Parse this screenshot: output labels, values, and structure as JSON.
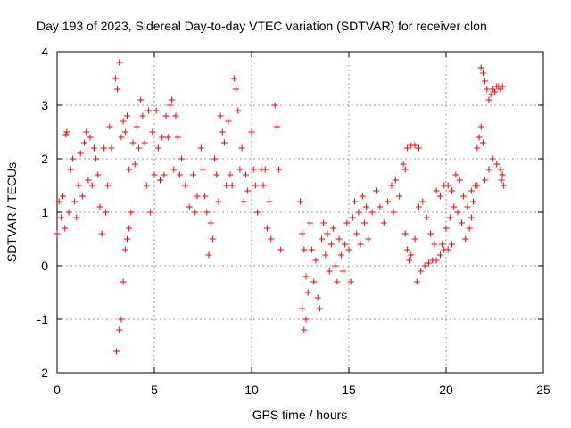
{
  "chart_data": {
    "type": "scatter",
    "title": "Day 193 of 2023, Sidereal Day-to-day VTEC variation (SDTVAR) for receiver clon",
    "xlabel": "GPS time / hours",
    "ylabel": "SDTVAR / TECUs",
    "xlim": [
      0,
      25
    ],
    "ylim": [
      -2,
      4
    ],
    "x_ticks": [
      0,
      5,
      10,
      15,
      20,
      25
    ],
    "x_tick_labels": [
      "0",
      "5",
      "10",
      "15",
      "20",
      "25"
    ],
    "y_ticks": [
      -2,
      -1,
      0,
      1,
      2,
      3,
      4
    ],
    "y_tick_labels": [
      "-2",
      "-1",
      "0",
      "1",
      "2",
      "3",
      "4"
    ],
    "grid": true,
    "marker": "plus",
    "color": "#ff0000",
    "series": [
      {
        "points": [
          [
            0.0,
            0.6
          ],
          [
            0.1,
            1.2
          ],
          [
            0.2,
            0.9
          ],
          [
            0.3,
            1.3
          ],
          [
            0.4,
            0.7
          ],
          [
            0.45,
            2.45
          ],
          [
            0.5,
            2.5
          ],
          [
            0.6,
            1.0
          ],
          [
            0.7,
            1.8
          ],
          [
            0.8,
            2.0
          ],
          [
            0.9,
            1.2
          ],
          [
            1.0,
            0.9
          ],
          [
            1.1,
            1.5
          ],
          [
            1.2,
            2.1
          ],
          [
            1.3,
            1.3
          ],
          [
            1.4,
            2.3
          ],
          [
            1.5,
            2.5
          ],
          [
            1.6,
            1.6
          ],
          [
            1.7,
            2.4
          ],
          [
            1.8,
            1.5
          ],
          [
            1.9,
            2.2
          ],
          [
            2.0,
            2.0
          ],
          [
            2.1,
            1.7
          ],
          [
            2.2,
            1.1
          ],
          [
            2.3,
            0.6
          ],
          [
            2.4,
            2.2
          ],
          [
            2.5,
            1.0
          ],
          [
            2.6,
            1.5
          ],
          [
            2.7,
            2.6
          ],
          [
            2.8,
            2.2
          ],
          [
            3.0,
            3.5
          ],
          [
            3.1,
            3.3
          ],
          [
            3.2,
            3.8
          ],
          [
            3.05,
            -1.6
          ],
          [
            3.2,
            -1.2
          ],
          [
            3.3,
            -1.0
          ],
          [
            3.4,
            -0.3
          ],
          [
            3.5,
            0.3
          ],
          [
            3.6,
            0.5
          ],
          [
            3.7,
            0.7
          ],
          [
            3.3,
            2.4
          ],
          [
            3.4,
            2.7
          ],
          [
            3.5,
            2.5
          ],
          [
            3.6,
            2.8
          ],
          [
            3.7,
            1.8
          ],
          [
            3.8,
            1.0
          ],
          [
            3.9,
            2.3
          ],
          [
            4.0,
            1.9
          ],
          [
            4.1,
            2.6
          ],
          [
            4.2,
            2.2
          ],
          [
            4.3,
            3.1
          ],
          [
            4.4,
            2.8
          ],
          [
            4.5,
            2.3
          ],
          [
            4.6,
            1.5
          ],
          [
            4.7,
            2.9
          ],
          [
            4.8,
            1.0
          ],
          [
            4.9,
            2.5
          ],
          [
            5.0,
            1.7
          ],
          [
            5.1,
            2.9
          ],
          [
            5.2,
            2.2
          ],
          [
            5.3,
            1.6
          ],
          [
            5.4,
            2.4
          ],
          [
            5.5,
            1.7
          ],
          [
            5.6,
            2.8
          ],
          [
            5.7,
            2.4
          ],
          [
            5.8,
            3.0
          ],
          [
            5.9,
            3.1
          ],
          [
            6.0,
            1.8
          ],
          [
            6.1,
            2.8
          ],
          [
            6.2,
            2.4
          ],
          [
            6.3,
            1.7
          ],
          [
            6.4,
            2.0
          ],
          [
            6.6,
            1.5
          ],
          [
            6.8,
            1.1
          ],
          [
            7.0,
            1.7
          ],
          [
            7.1,
            1.0
          ],
          [
            7.2,
            1.3
          ],
          [
            7.4,
            2.2
          ],
          [
            7.5,
            1.8
          ],
          [
            7.6,
            1.3
          ],
          [
            7.7,
            1.0
          ],
          [
            7.8,
            0.2
          ],
          [
            7.9,
            0.8
          ],
          [
            8.0,
            0.5
          ],
          [
            8.1,
            2.0
          ],
          [
            8.2,
            1.7
          ],
          [
            8.3,
            1.2
          ],
          [
            8.4,
            2.8
          ],
          [
            8.5,
            2.5
          ],
          [
            8.6,
            2.3
          ],
          [
            8.7,
            1.5
          ],
          [
            8.8,
            2.7
          ],
          [
            8.9,
            1.7
          ],
          [
            9.0,
            1.5
          ],
          [
            9.1,
            3.5
          ],
          [
            9.2,
            3.3
          ],
          [
            9.3,
            2.9
          ],
          [
            9.4,
            1.8
          ],
          [
            9.5,
            2.2
          ],
          [
            9.6,
            1.2
          ],
          [
            9.7,
            1.7
          ],
          [
            9.8,
            1.4
          ],
          [
            10.0,
            2.5
          ],
          [
            10.1,
            1.8
          ],
          [
            10.2,
            1.5
          ],
          [
            10.3,
            1.0
          ],
          [
            10.5,
            1.8
          ],
          [
            10.6,
            1.5
          ],
          [
            10.7,
            1.8
          ],
          [
            10.8,
            0.7
          ],
          [
            10.9,
            1.2
          ],
          [
            11.0,
            0.5
          ],
          [
            11.2,
            3.0
          ],
          [
            11.3,
            2.6
          ],
          [
            11.4,
            1.8
          ],
          [
            11.5,
            0.3
          ],
          [
            12.6,
            -0.8
          ],
          [
            12.7,
            -1.2
          ],
          [
            12.8,
            -1.0
          ],
          [
            12.9,
            -0.5
          ],
          [
            12.5,
            1.2
          ],
          [
            12.6,
            0.6
          ],
          [
            12.7,
            0.3
          ],
          [
            12.8,
            -0.2
          ],
          [
            13.0,
            0.8
          ],
          [
            13.1,
            0.3
          ],
          [
            13.2,
            -0.3
          ],
          [
            13.3,
            0.1
          ],
          [
            13.4,
            -0.6
          ],
          [
            13.5,
            -0.8
          ],
          [
            13.6,
            0.5
          ],
          [
            13.7,
            0.8
          ],
          [
            13.8,
            0.2
          ],
          [
            13.9,
            0.6
          ],
          [
            14.0,
            -0.1
          ],
          [
            14.1,
            0.4
          ],
          [
            14.2,
            0.7
          ],
          [
            14.3,
            0.0
          ],
          [
            14.4,
            -0.3
          ],
          [
            14.5,
            0.5
          ],
          [
            14.6,
            0.2
          ],
          [
            14.7,
            -0.1
          ],
          [
            14.8,
            0.4
          ],
          [
            14.9,
            0.8
          ],
          [
            15.0,
            0.3
          ],
          [
            15.1,
            -0.3
          ],
          [
            15.2,
            0.9
          ],
          [
            15.3,
            1.2
          ],
          [
            15.4,
            0.6
          ],
          [
            15.5,
            1.0
          ],
          [
            15.6,
            0.4
          ],
          [
            15.7,
            1.3
          ],
          [
            15.8,
            0.8
          ],
          [
            15.9,
            1.1
          ],
          [
            16.0,
            0.5
          ],
          [
            16.2,
            1.0
          ],
          [
            16.4,
            1.4
          ],
          [
            16.6,
            1.1
          ],
          [
            16.8,
            0.8
          ],
          [
            17.0,
            1.2
          ],
          [
            17.2,
            1.5
          ],
          [
            17.3,
            1.0
          ],
          [
            17.4,
            1.6
          ],
          [
            17.6,
            1.3
          ],
          [
            17.8,
            1.9
          ],
          [
            17.9,
            1.8
          ],
          [
            18.0,
            2.2
          ],
          [
            18.2,
            2.25
          ],
          [
            18.4,
            2.25
          ],
          [
            18.6,
            2.2
          ],
          [
            17.9,
            0.6
          ],
          [
            18.0,
            0.3
          ],
          [
            18.1,
            0.1
          ],
          [
            18.2,
            0.2
          ],
          [
            18.4,
            0.5
          ],
          [
            18.6,
            1.1
          ],
          [
            18.8,
            1.2
          ],
          [
            19.0,
            0.9
          ],
          [
            19.2,
            0.6
          ],
          [
            19.4,
            0.4
          ],
          [
            18.5,
            -0.3
          ],
          [
            18.7,
            -0.1
          ],
          [
            18.9,
            0.0
          ],
          [
            19.1,
            0.05
          ],
          [
            19.3,
            0.1
          ],
          [
            19.5,
            0.1
          ],
          [
            19.7,
            0.2
          ],
          [
            19.9,
            0.3
          ],
          [
            20.1,
            0.3
          ],
          [
            20.3,
            0.4
          ],
          [
            19.5,
            1.4
          ],
          [
            19.7,
            1.3
          ],
          [
            19.9,
            1.5
          ],
          [
            20.1,
            1.5
          ],
          [
            20.3,
            1.4
          ],
          [
            20.5,
            1.7
          ],
          [
            20.7,
            1.6
          ],
          [
            20.9,
            1.3
          ],
          [
            21.1,
            1.1
          ],
          [
            21.3,
            1.4
          ],
          [
            19.8,
            0.4
          ],
          [
            20.0,
            0.7
          ],
          [
            20.2,
            0.9
          ],
          [
            20.4,
            1.1
          ],
          [
            20.6,
            1.0
          ],
          [
            20.8,
            0.8
          ],
          [
            21.0,
            0.5
          ],
          [
            21.2,
            0.7
          ],
          [
            21.4,
            1.2
          ],
          [
            21.6,
            1.5
          ],
          [
            21.3,
            0.9
          ],
          [
            21.5,
            1.5
          ],
          [
            21.6,
            2.2
          ],
          [
            21.7,
            2.4
          ],
          [
            21.8,
            2.6
          ],
          [
            21.9,
            2.3
          ],
          [
            22.0,
            1.6
          ],
          [
            22.2,
            1.8
          ],
          [
            22.4,
            2.0
          ],
          [
            22.6,
            1.9
          ],
          [
            21.8,
            3.7
          ],
          [
            21.9,
            3.6
          ],
          [
            22.0,
            3.45
          ],
          [
            22.1,
            3.3
          ],
          [
            22.2,
            3.1
          ],
          [
            22.3,
            3.2
          ],
          [
            22.4,
            3.3
          ],
          [
            22.5,
            3.25
          ],
          [
            22.6,
            3.35
          ],
          [
            22.7,
            3.35
          ],
          [
            22.8,
            3.3
          ],
          [
            22.9,
            3.35
          ],
          [
            22.8,
            1.8
          ],
          [
            22.85,
            1.6
          ],
          [
            22.9,
            1.7
          ],
          [
            22.95,
            1.5
          ]
        ]
      }
    ]
  }
}
